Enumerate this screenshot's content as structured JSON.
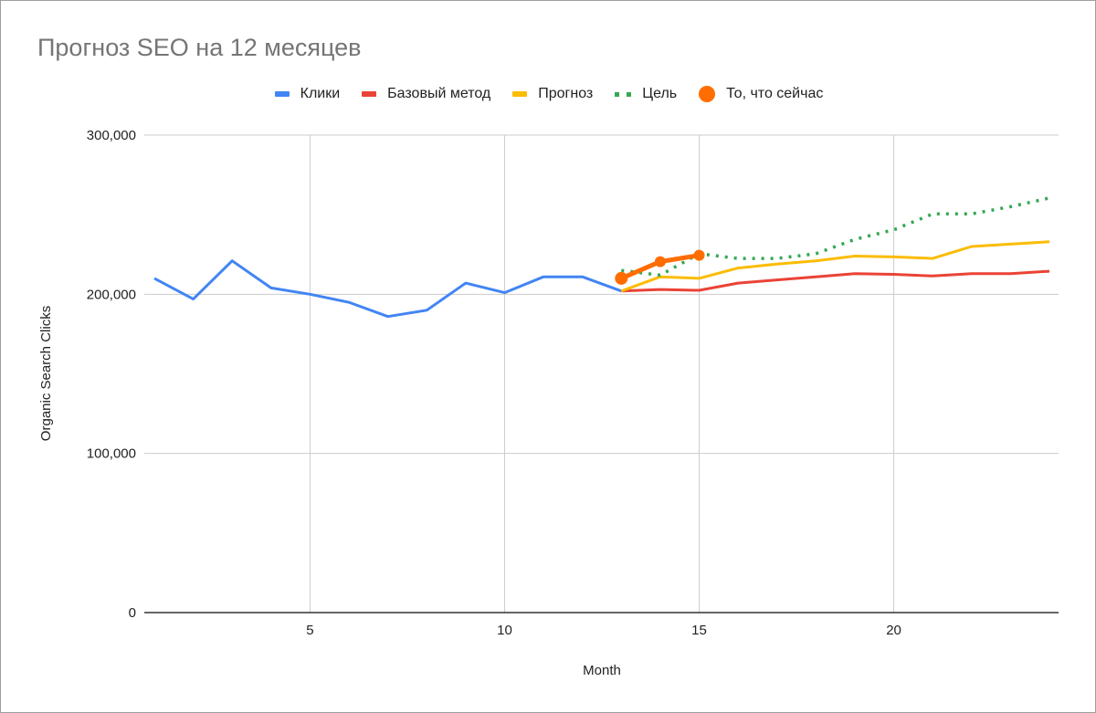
{
  "chart_data": {
    "type": "line",
    "title": "Прогноз SEO на 12 месяцев",
    "xlabel": "Month",
    "ylabel": "Organic Search Clicks",
    "xlim": [
      1,
      24
    ],
    "ylim": [
      0,
      300000
    ],
    "x_ticks": [
      5,
      10,
      15,
      20
    ],
    "y_ticks": [
      0,
      100000,
      200000,
      300000
    ],
    "y_tick_labels": [
      "0",
      "100,000",
      "200,000",
      "300,000"
    ],
    "grid": true,
    "legend_position": "top",
    "series": [
      {
        "name": "Клики",
        "color": "#4285f4",
        "style": "solid",
        "x": [
          1,
          2,
          3,
          4,
          5,
          6,
          7,
          8,
          9,
          10,
          11,
          12,
          13
        ],
        "values": [
          210000,
          197000,
          221000,
          204000,
          200000,
          195000,
          186000,
          190000,
          207000,
          201000,
          211000,
          211000,
          202000
        ]
      },
      {
        "name": "Базовый метод",
        "color": "#ea4335",
        "style": "solid",
        "x": [
          13,
          14,
          15,
          16,
          17,
          18,
          19,
          20,
          21,
          22,
          23,
          24
        ],
        "values": [
          202000,
          203000,
          202500,
          207000,
          209000,
          211000,
          213000,
          212500,
          211500,
          213000,
          213000,
          214500
        ]
      },
      {
        "name": "Прогноз",
        "color": "#fbbc04",
        "style": "solid",
        "x": [
          13,
          14,
          15,
          16,
          17,
          18,
          19,
          20,
          21,
          22,
          23,
          24
        ],
        "values": [
          202000,
          211000,
          210000,
          216500,
          219000,
          221000,
          224000,
          223500,
          222500,
          230000,
          231500,
          233000
        ]
      },
      {
        "name": "Цель",
        "color": "#34a853",
        "style": "dotted",
        "x": [
          13,
          14,
          15,
          16,
          17,
          18,
          19,
          20,
          21,
          22,
          23,
          24
        ],
        "values": [
          215000,
          212000,
          225500,
          222500,
          222500,
          225500,
          234500,
          240500,
          250500,
          250500,
          255000,
          260500
        ]
      },
      {
        "name": "То, что сейчас",
        "color": "#ff6d01",
        "style": "solid-with-markers",
        "x": [
          13,
          14,
          15
        ],
        "values": [
          210000,
          220500,
          224500
        ]
      }
    ]
  },
  "legend": [
    {
      "label": "Клики",
      "color": "#4285f4",
      "kind": "line"
    },
    {
      "label": "Базовый метод",
      "color": "#ea4335",
      "kind": "line"
    },
    {
      "label": "Прогноз",
      "color": "#fbbc04",
      "kind": "line"
    },
    {
      "label": "Цель",
      "color": "#34a853",
      "kind": "dots"
    },
    {
      "label": "То, что сейчас",
      "color": "#ff6d01",
      "kind": "marker"
    }
  ]
}
